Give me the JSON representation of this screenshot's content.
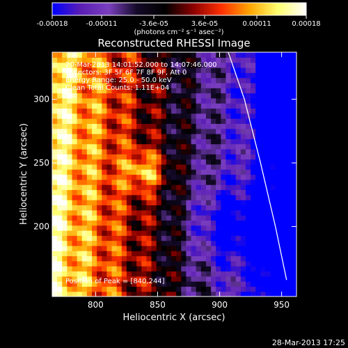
{
  "chart_data": {
    "type": "heatmap",
    "title": "Reconstructed RHESSI Image",
    "xlabel": "Heliocentric X (arcsec)",
    "ylabel": "Heliocentric Y (arcsec)",
    "xlim": [
      765,
      962
    ],
    "ylim": [
      145,
      337
    ],
    "xticks": [
      800,
      850,
      900,
      950
    ],
    "yticks": [
      200,
      250,
      300
    ],
    "colorbar": {
      "min": -0.00018,
      "max": 0.00018,
      "ticks": [
        -0.00018,
        -0.00011,
        -3.6e-05,
        3.6e-05,
        0.00011,
        0.00018
      ],
      "tick_labels": [
        "-0.00018",
        "-0.00011",
        "-3.6e-05",
        "3.6e-05",
        "0.00011",
        "0.00018"
      ],
      "units_label": "(photons cm⁻² s⁻¹ asec⁻²)",
      "colormap": [
        "#0000ff",
        "#5a1eb4",
        "#7a3fbf",
        "#140a28",
        "#000000",
        "#8b0000",
        "#ff3000",
        "#ffa500",
        "#ffff70",
        "#ffffff"
      ]
    },
    "annotations": [
      "20-Mar-2013 14:01:52.000 to 14:07:46.000",
      "Detectors: 3F 5F 6F 7F 8F 9F, Att 0",
      "Energy Range: 25.0 - 50.0 keV",
      "Clean    Total Counts: 1.11E+04"
    ],
    "peak_label": "Position of Peak = [840,244]",
    "peak": [
      840,
      244
    ],
    "limb_curve": [
      [
        907,
        337
      ],
      [
        920,
        300
      ],
      [
        933,
        250
      ],
      [
        945,
        200
      ],
      [
        954,
        158
      ]
    ],
    "timestamp": "28-Mar-2013 17:25"
  }
}
